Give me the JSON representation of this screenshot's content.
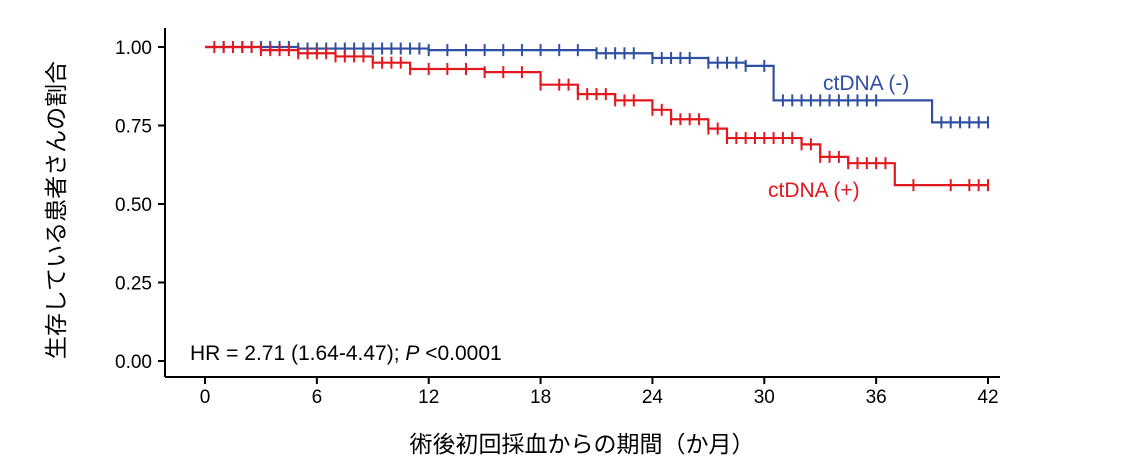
{
  "chart_data": {
    "type": "line",
    "subtype": "kaplan-meier",
    "title": "",
    "xlabel": "術後初回採血からの期間（か月）",
    "ylabel": "生存している患者さんの割合",
    "xlim": [
      0,
      42
    ],
    "ylim": [
      0,
      1
    ],
    "x_ticks": [
      "0",
      "6",
      "12",
      "18",
      "24",
      "30",
      "36",
      "42"
    ],
    "y_ticks": [
      "0.00",
      "0.25",
      "0.50",
      "0.75",
      "1.00"
    ],
    "grid": false,
    "legend": "inline labels",
    "annotation": {
      "prefix": "HR = 2.71 (1.64-4.47); ",
      "p_label": "P",
      "p_value": " <0.0001"
    },
    "series": [
      {
        "name": "ctDNA (-)",
        "color": "#2f4fa2",
        "steps": [
          [
            0,
            1.0
          ],
          [
            5,
            0.995
          ],
          [
            12,
            0.99
          ],
          [
            21,
            0.98
          ],
          [
            24,
            0.965
          ],
          [
            27,
            0.95
          ],
          [
            29,
            0.94
          ],
          [
            30.5,
            0.83
          ],
          [
            39,
            0.76
          ],
          [
            42,
            0.76
          ]
        ],
        "censors": [
          1,
          2,
          2.5,
          3,
          3.5,
          4,
          4.5,
          5,
          5.5,
          6,
          6.5,
          7,
          7.5,
          8,
          8.5,
          9,
          9.5,
          10,
          10.5,
          11,
          11.5,
          12,
          13,
          14,
          15,
          16,
          17,
          18,
          19,
          20,
          21,
          21.5,
          22,
          22.5,
          23,
          24,
          24.5,
          25,
          25.5,
          26,
          27,
          27.5,
          28,
          28.5,
          29,
          30,
          31,
          31.5,
          32,
          32.5,
          33,
          33.5,
          34,
          34.5,
          35,
          35.5,
          36,
          39.5,
          40,
          40.5,
          41,
          41.5,
          42
        ]
      },
      {
        "name": "ctDNA (+)",
        "color": "#e1191e",
        "steps": [
          [
            0,
            1.0
          ],
          [
            3,
            0.99
          ],
          [
            5,
            0.98
          ],
          [
            7,
            0.97
          ],
          [
            9,
            0.95
          ],
          [
            11,
            0.93
          ],
          [
            15,
            0.92
          ],
          [
            18,
            0.88
          ],
          [
            20,
            0.85
          ],
          [
            22,
            0.83
          ],
          [
            24,
            0.8
          ],
          [
            25,
            0.77
          ],
          [
            27,
            0.74
          ],
          [
            28,
            0.71
          ],
          [
            32,
            0.69
          ],
          [
            33,
            0.65
          ],
          [
            34.5,
            0.63
          ],
          [
            37,
            0.56
          ],
          [
            42,
            0.56
          ]
        ],
        "censors": [
          0.5,
          1,
          1.5,
          2,
          2.5,
          3,
          3.5,
          4,
          4.5,
          5,
          5.5,
          6,
          6.5,
          7,
          7.5,
          8,
          8.5,
          9,
          9.5,
          10,
          10.5,
          11,
          12,
          13,
          14,
          15,
          16,
          17,
          18,
          19,
          19.5,
          20,
          20.5,
          21,
          21.5,
          22,
          22.5,
          23,
          24,
          24.5,
          25,
          25.5,
          26,
          26.5,
          27,
          27.5,
          28,
          28.5,
          29,
          29.5,
          30,
          30.5,
          31,
          31.5,
          32,
          32.5,
          33,
          33.5,
          34,
          34.5,
          35,
          35.5,
          36,
          36.5,
          38,
          40,
          41,
          41.5,
          42
        ]
      }
    ]
  }
}
